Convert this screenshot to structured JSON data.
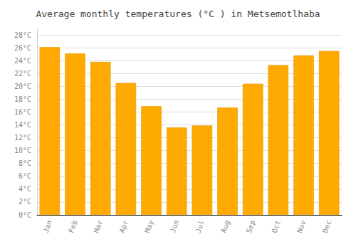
{
  "chart_data": {
    "type": "bar",
    "title": "Average monthly temperatures (°C ) in Metsemotlhaba",
    "categories": [
      "Jan",
      "Feb",
      "Mar",
      "Apr",
      "May",
      "Jun",
      "Jul",
      "Aug",
      "Sep",
      "Oct",
      "Nov",
      "Dec"
    ],
    "values": [
      26.1,
      25.1,
      23.8,
      20.5,
      16.9,
      13.6,
      13.9,
      16.7,
      20.4,
      23.3,
      24.8,
      25.5
    ],
    "color": "#FFAA00",
    "ylim": [
      0,
      29
    ],
    "yticks": [
      {
        "value": 0,
        "label": "0°C"
      },
      {
        "value": 2,
        "label": "2°C"
      },
      {
        "value": 4,
        "label": "4°C"
      },
      {
        "value": 6,
        "label": "6°C"
      },
      {
        "value": 8,
        "label": "8°C"
      },
      {
        "value": 10,
        "label": "10°C"
      },
      {
        "value": 12,
        "label": "12°C"
      },
      {
        "value": 14,
        "label": "14°C"
      },
      {
        "value": 16,
        "label": "16°C"
      },
      {
        "value": 18,
        "label": "18°C"
      },
      {
        "value": 20,
        "label": "20°C"
      },
      {
        "value": 22,
        "label": "22°C"
      },
      {
        "value": 24,
        "label": "24°C"
      },
      {
        "value": 26,
        "label": "26°C"
      },
      {
        "value": 28,
        "label": "28°C"
      }
    ],
    "grid": true
  }
}
